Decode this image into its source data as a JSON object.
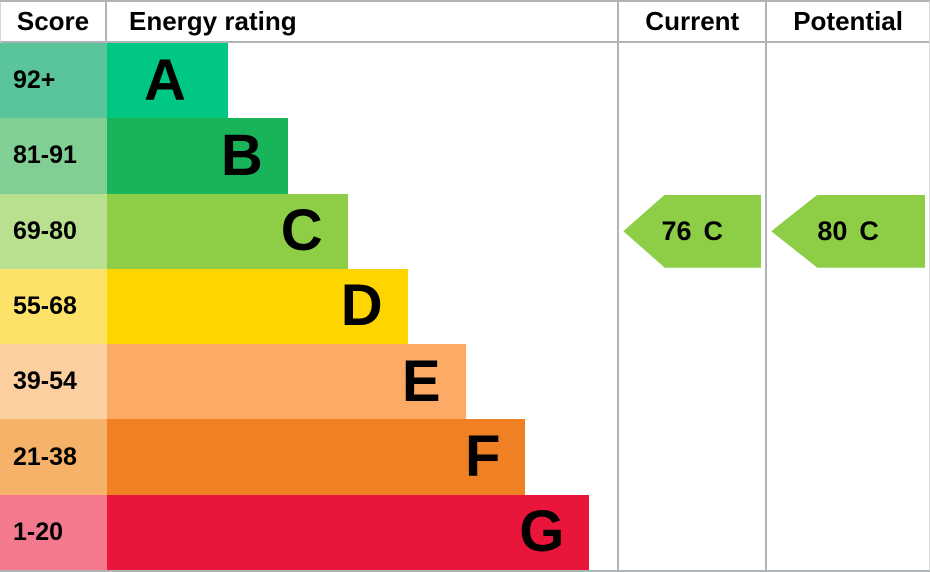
{
  "header": {
    "score": "Score",
    "energy_rating": "Energy rating",
    "current": "Current",
    "potential": "Potential"
  },
  "chart_data": {
    "type": "bar",
    "subtype": "epc-energy-rating",
    "bands": [
      {
        "letter": "A",
        "score_range": "92+",
        "bar_color": "#00c781",
        "score_bg": "#5ac59b",
        "bar_width_pct": 23.68
      },
      {
        "letter": "B",
        "score_range": "81-91",
        "bar_color": "#19b459",
        "score_bg": "#82cf96",
        "bar_width_pct": 35.42
      },
      {
        "letter": "C",
        "score_range": "69-80",
        "bar_color": "#8dce46",
        "score_bg": "#b9e08e",
        "bar_width_pct": 47.16
      },
      {
        "letter": "D",
        "score_range": "55-68",
        "bar_color": "#ffd500",
        "score_bg": "#fde269",
        "bar_width_pct": 58.9
      },
      {
        "letter": "E",
        "score_range": "39-54",
        "bar_color": "#fcaa65",
        "score_bg": "#fccfa0",
        "bar_width_pct": 70.25
      },
      {
        "letter": "F",
        "score_range": "21-38",
        "bar_color": "#ef8023",
        "score_bg": "#f5b268",
        "bar_width_pct": 81.99
      },
      {
        "letter": "G",
        "score_range": "1-20",
        "bar_color": "#e9153b",
        "score_bg": "#f4798f",
        "bar_width_pct": 94.52
      }
    ],
    "current": {
      "value": "76",
      "letter": "C",
      "band_index": 2,
      "arrow_color": "#8dce46"
    },
    "potential": {
      "value": "80",
      "letter": "C",
      "band_index": 2,
      "arrow_color": "#8dce46"
    }
  },
  "colors": {
    "border": "#b1b4b6",
    "text": "#000000"
  }
}
